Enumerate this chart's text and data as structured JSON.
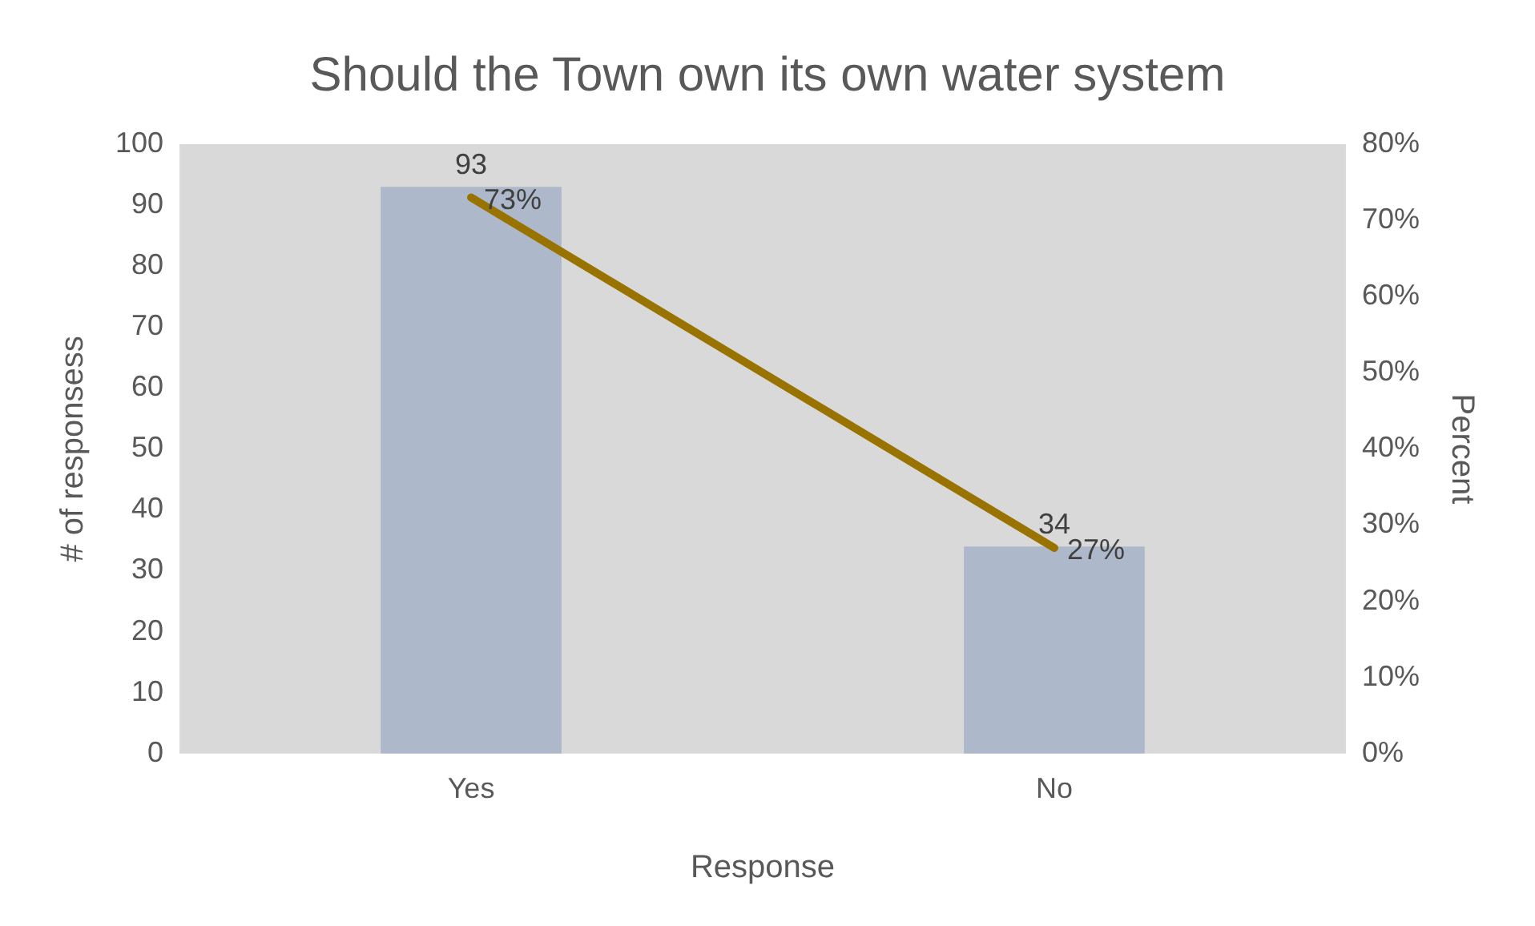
{
  "chart_data": {
    "type": "bar",
    "title": "Should the Town own its own water system",
    "xlabel": "Response",
    "ylabel": "# of responsess",
    "y2label": "Percent",
    "categories": [
      "Yes",
      "No"
    ],
    "series": [
      {
        "color": "#adb9ca",
        "values": [
          93,
          34
        ],
        "value_labels": [
          "93",
          "34"
        ]
      },
      {
        "type": "line",
        "axis": "y2",
        "color": "#997300",
        "values": [
          73,
          27
        ],
        "value_labels": [
          "73%",
          "27%"
        ]
      }
    ],
    "ylim": [
      0,
      100
    ],
    "yticks": [
      0,
      10,
      20,
      30,
      40,
      50,
      60,
      70,
      80,
      90,
      100
    ],
    "y2lim": [
      0,
      80
    ],
    "y2ticks": [
      {
        "value": 0,
        "label": "0%"
      },
      {
        "value": 10,
        "label": "10%"
      },
      {
        "value": 20,
        "label": "20%"
      },
      {
        "value": 30,
        "label": "30%"
      },
      {
        "value": 40,
        "label": "40%"
      },
      {
        "value": 50,
        "label": "50%"
      },
      {
        "value": 60,
        "label": "60%"
      },
      {
        "value": 70,
        "label": "70%"
      },
      {
        "value": 80,
        "label": "80%"
      }
    ],
    "grid": false,
    "legend": false,
    "marker": "none"
  }
}
